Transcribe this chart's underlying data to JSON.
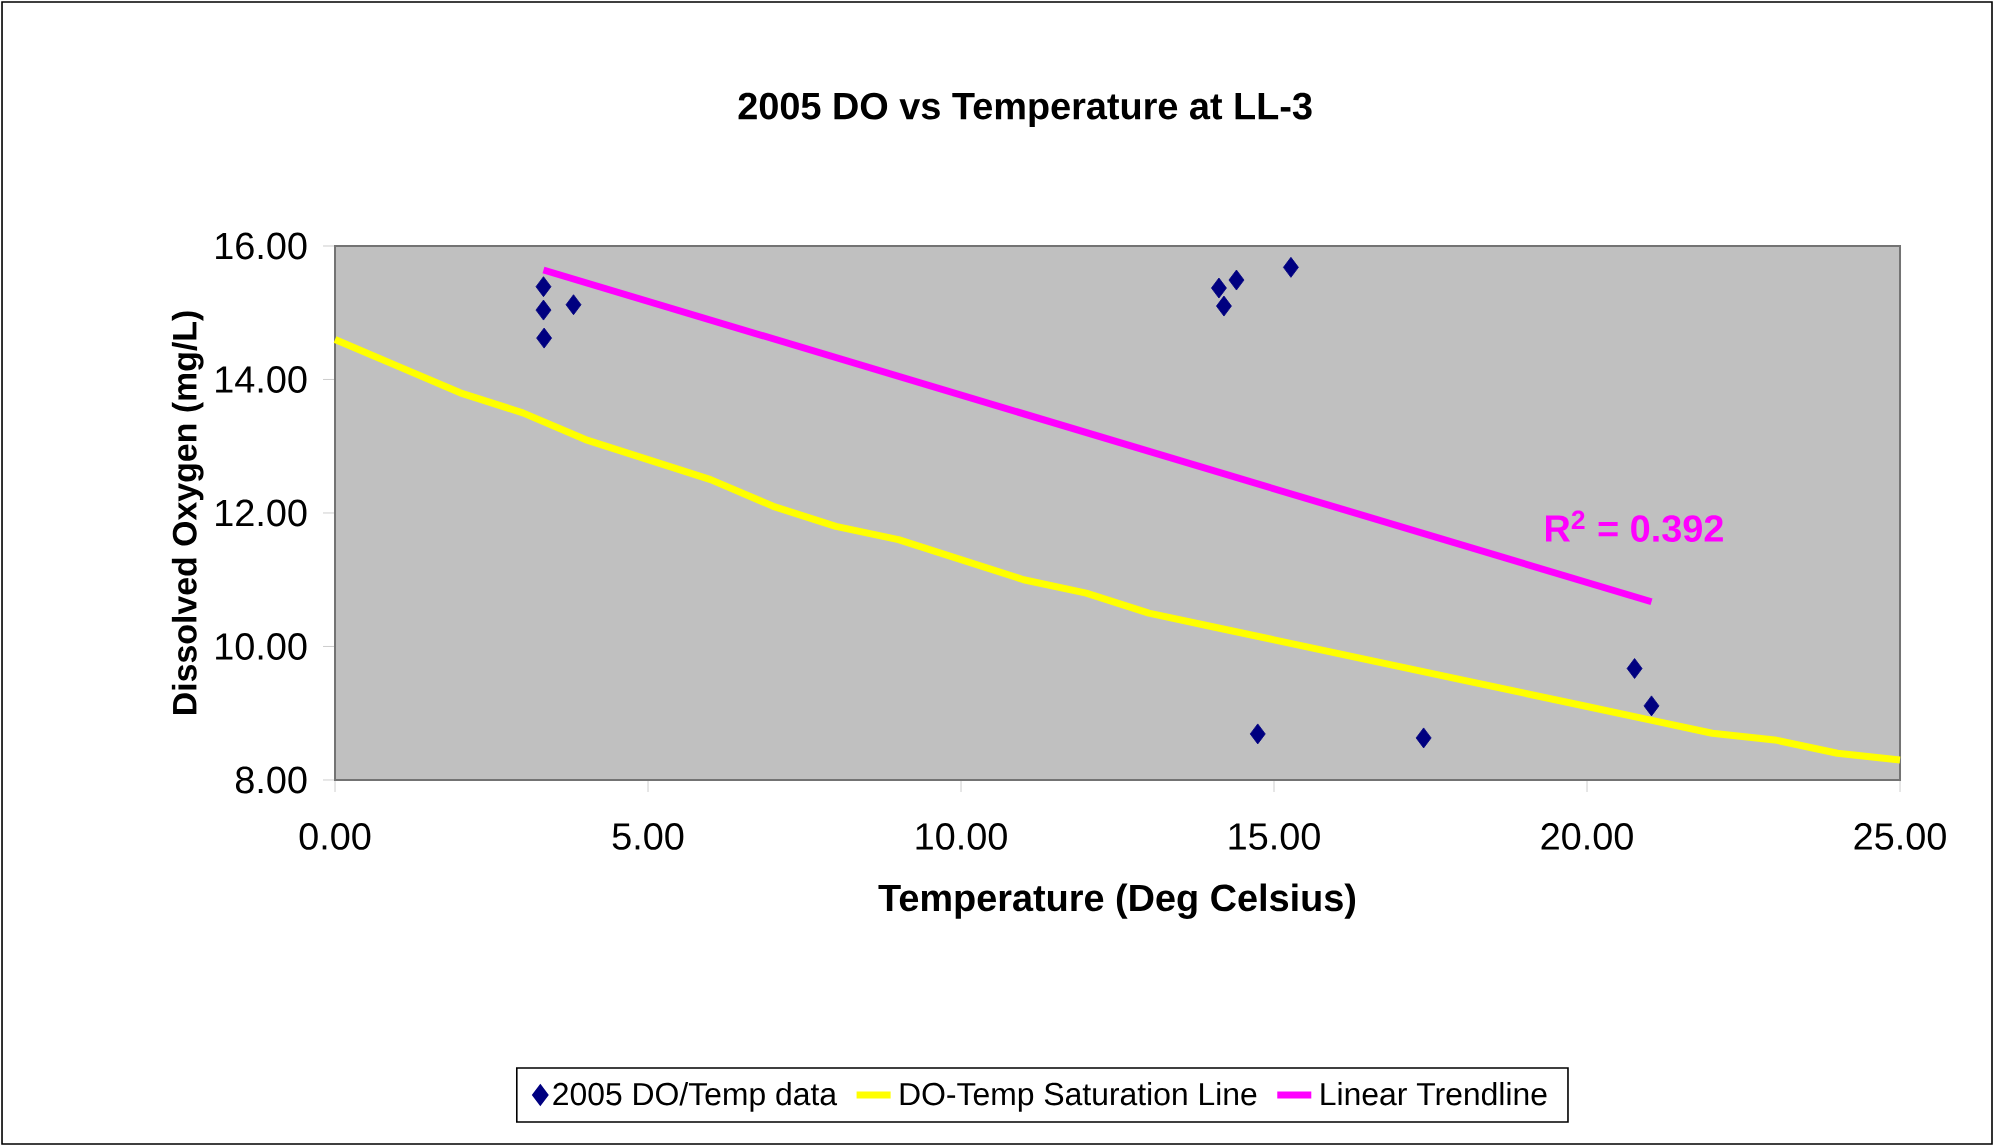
{
  "chart_data": {
    "type": "scatter",
    "title": "2005 DO vs Temperature at LL-3",
    "xlabel": "Temperature (Deg Celsius)",
    "ylabel": "Dissolved Oxygen (mg/L)",
    "xlim": [
      0,
      25
    ],
    "ylim": [
      8,
      16
    ],
    "xticks": [
      {
        "value": 0,
        "label": "0.00"
      },
      {
        "value": 5,
        "label": "5.00"
      },
      {
        "value": 10,
        "label": "10.00"
      },
      {
        "value": 15,
        "label": "15.00"
      },
      {
        "value": 20,
        "label": "20.00"
      },
      {
        "value": 25,
        "label": "25.00"
      }
    ],
    "yticks": [
      {
        "value": 8,
        "label": "8.00"
      },
      {
        "value": 10,
        "label": "10.00"
      },
      {
        "value": 12,
        "label": "12.00"
      },
      {
        "value": 14,
        "label": "14.00"
      },
      {
        "value": 16,
        "label": "16.00"
      }
    ],
    "legend": "bottom",
    "series": [
      {
        "name": "2005 DO/Temp data",
        "type": "scatter",
        "marker": "diamond",
        "color": "#000080",
        "x": [
          3.33,
          3.33,
          3.81,
          3.34,
          14.12,
          14.4,
          14.2,
          15.27,
          14.74,
          17.39,
          20.76,
          21.03
        ],
        "values": [
          15.39,
          15.04,
          15.12,
          14.62,
          15.37,
          15.49,
          15.1,
          15.68,
          8.69,
          8.63,
          9.67,
          9.11
        ]
      },
      {
        "name": "DO-Temp Saturation Line",
        "type": "line",
        "marker": "none",
        "color": "#ffff00",
        "x": [
          0,
          1,
          2,
          3,
          4,
          5,
          6,
          7,
          8,
          9,
          10,
          11,
          12,
          13,
          14,
          15,
          16,
          17,
          18,
          19,
          20,
          21,
          22,
          23,
          24,
          25
        ],
        "values": [
          14.6,
          14.2,
          13.8,
          13.5,
          13.1,
          12.8,
          12.5,
          12.1,
          11.8,
          11.6,
          11.3,
          11.0,
          10.8,
          10.5,
          10.3,
          10.1,
          9.9,
          9.7,
          9.5,
          9.3,
          9.1,
          8.9,
          8.7,
          8.6,
          8.4,
          8.3
        ]
      },
      {
        "name": "Linear Trendline",
        "type": "line",
        "marker": "none",
        "color": "#ff00ff",
        "x": [
          3.33,
          21.03
        ],
        "values": [
          15.64,
          10.67
        ]
      }
    ],
    "annotations": [
      "R$^{2}$ = 0.392"
    ]
  }
}
